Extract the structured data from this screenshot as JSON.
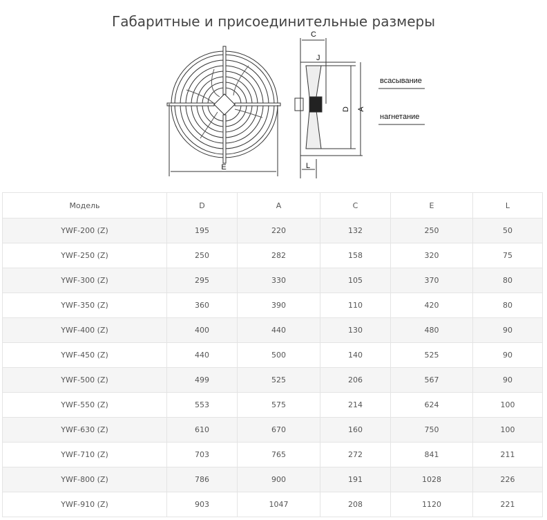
{
  "title": "Габаритные и присоединительные размеры",
  "diagram": {
    "labels": {
      "C": "C",
      "J": "J",
      "D": "D",
      "A": "A",
      "E": "E",
      "L": "L"
    },
    "suction": "всасывание",
    "discharge": "нагнетание"
  },
  "table": {
    "headers": [
      "Модель",
      "D",
      "A",
      "C",
      "E",
      "L"
    ],
    "rows": [
      [
        "YWF-200 (Z)",
        "195",
        "220",
        "132",
        "250",
        "50"
      ],
      [
        "YWF-250 (Z)",
        "250",
        "282",
        "158",
        "320",
        "75"
      ],
      [
        "YWF-300 (Z)",
        "295",
        "330",
        "105",
        "370",
        "80"
      ],
      [
        "YWF-350 (Z)",
        "360",
        "390",
        "110",
        "420",
        "80"
      ],
      [
        "YWF-400 (Z)",
        "400",
        "440",
        "130",
        "480",
        "90"
      ],
      [
        "YWF-450 (Z)",
        "440",
        "500",
        "140",
        "525",
        "90"
      ],
      [
        "YWF-500 (Z)",
        "499",
        "525",
        "206",
        "567",
        "90"
      ],
      [
        "YWF-550 (Z)",
        "553",
        "575",
        "214",
        "624",
        "100"
      ],
      [
        "YWF-630 (Z)",
        "610",
        "670",
        "160",
        "750",
        "100"
      ],
      [
        "YWF-710 (Z)",
        "703",
        "765",
        "272",
        "841",
        "211"
      ],
      [
        "YWF-800 (Z)",
        "786",
        "900",
        "191",
        "1028",
        "226"
      ],
      [
        "YWF-910 (Z)",
        "903",
        "1047",
        "208",
        "1120",
        "221"
      ]
    ]
  }
}
